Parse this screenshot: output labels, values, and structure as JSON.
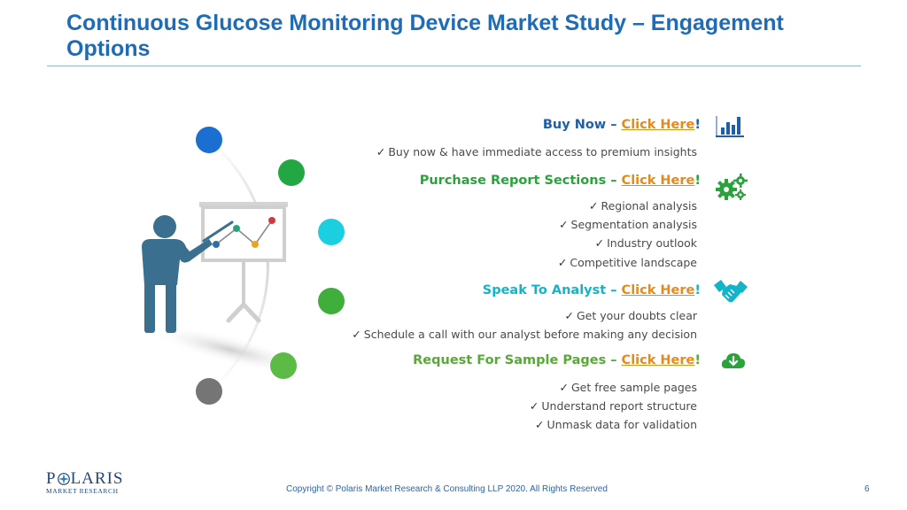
{
  "header": {
    "title": "Continuous Glucose Monitoring Device Market Study – Engagement Options"
  },
  "sections": [
    {
      "heading": "Buy Now – ",
      "link": "Click Here",
      "suffix": "!",
      "color": "#1f5fa8",
      "icon": "bar-chart-icon",
      "bullets": [
        "Buy now & have immediate access to premium insights"
      ]
    },
    {
      "heading": "Purchase Report Sections – ",
      "link": "Click Here",
      "suffix": "!",
      "color": "#2aa33c",
      "icon": "gears-icon",
      "bullets": [
        "Regional analysis",
        "Segmentation analysis",
        "Industry outlook",
        "Competitive landscape"
      ]
    },
    {
      "heading": "Speak To Analyst – ",
      "link": "Click Here",
      "suffix": "!",
      "color": "#14b4c8",
      "icon": "handshake-icon",
      "bullets": [
        "Get your doubts clear",
        "Schedule a call with our analyst before making any decision"
      ]
    },
    {
      "heading": "Request For Sample Pages – ",
      "link": "Click Here",
      "suffix": "!",
      "color": "#5aa83a",
      "icon": "cloud-download-icon",
      "bullets": [
        "Get free sample pages",
        "Understand report structure",
        "Unmask data for validation"
      ]
    }
  ],
  "link_color": "#e58a1c",
  "illustration": {
    "icon": "presenter-whiteboard-icon",
    "dot_colors": [
      "#1a6fd0",
      "#23a744",
      "#1ccfe0",
      "#3fae3a",
      "#5cbb44",
      "#757575"
    ]
  },
  "footer": {
    "copyright": "Copyright © Polaris Market Research & Consulting LLP 2020. All Rights Reserved",
    "page_number": "6",
    "logo_main_left": "P",
    "logo_main_right": "LARIS",
    "logo_sub": "MARKET RESEARCH"
  }
}
